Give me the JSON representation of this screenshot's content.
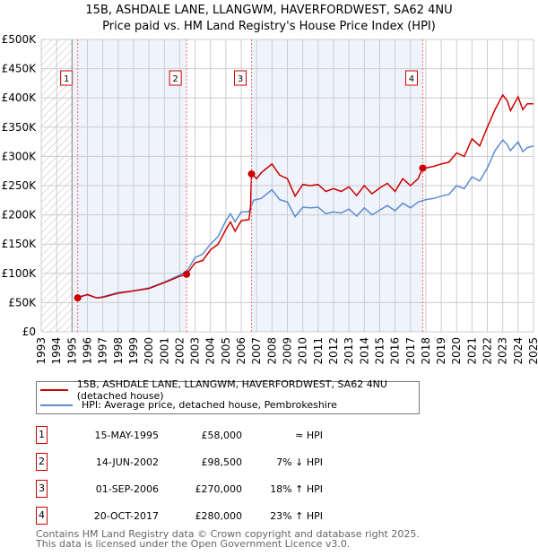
{
  "chart_data": {
    "type": "line",
    "title": "15B, ASHDALE LANE, LLANGWM, HAVERFORDWEST, SA62 4NU",
    "subtitle": "Price paid vs. HM Land Registry's House Price Index (HPI)",
    "ylim": [
      0,
      500000
    ],
    "xlim": [
      1993,
      2025
    ],
    "yticks": [
      0,
      50000,
      100000,
      150000,
      200000,
      250000,
      300000,
      350000,
      400000,
      450000,
      500000
    ],
    "ytick_labels": [
      "£0",
      "£50K",
      "£100K",
      "£150K",
      "£200K",
      "£250K",
      "£300K",
      "£350K",
      "£400K",
      "£450K",
      "£500K"
    ],
    "xtick_labels": [
      "1993",
      "1994",
      "1995",
      "1996",
      "1997",
      "1998",
      "1999",
      "2000",
      "2001",
      "2002",
      "2003",
      "2004",
      "2005",
      "2006",
      "2007",
      "2008",
      "2009",
      "2010",
      "2011",
      "2012",
      "2013",
      "2014",
      "2015",
      "2016",
      "2017",
      "2018",
      "2019",
      "2020",
      "2021",
      "2022",
      "2023",
      "2024",
      "2025"
    ],
    "grid": true,
    "hatched_range": [
      1993,
      1995
    ],
    "shaded_ranges": [
      [
        1995,
        2002.45
      ],
      [
        2006.67,
        2017.8
      ]
    ],
    "series": [
      {
        "name": "15B, ASHDALE LANE, LLANGWM, HAVERFORDWEST, SA62 4NU (detached house)",
        "color": "#cc0000",
        "x": [
          1995.3,
          1995.37,
          1996,
          1996.6,
          1997,
          1998,
          1999,
          2000,
          2001,
          2002,
          2002.45,
          2003,
          2003.5,
          2004,
          2004.5,
          2005,
          2005.3,
          2005.6,
          2006,
          2006.5,
          2006.6,
          2006.67,
          2007,
          2007.3,
          2008,
          2008.5,
          2009,
          2009.5,
          2010,
          2010.5,
          2011,
          2011.5,
          2012,
          2012.5,
          2013,
          2013.5,
          2014,
          2014.5,
          2015,
          2015.5,
          2016,
          2016.5,
          2017,
          2017.5,
          2017.8,
          2018,
          2018.5,
          2019,
          2019.5,
          2020,
          2020.5,
          2021,
          2021.5,
          2022,
          2022.5,
          2023,
          2023.3,
          2023.5,
          2024,
          2024.3,
          2024.6,
          2025
        ],
        "y": [
          62000,
          58000,
          64000,
          58000,
          59000,
          66000,
          70000,
          74000,
          84000,
          95000,
          98500,
          118000,
          122000,
          140000,
          150000,
          175000,
          188000,
          172000,
          190000,
          192000,
          210000,
          270000,
          262000,
          272000,
          287000,
          268000,
          262000,
          232000,
          252000,
          250000,
          252000,
          240000,
          245000,
          240000,
          248000,
          233000,
          250000,
          236000,
          246000,
          254000,
          240000,
          262000,
          250000,
          262000,
          280000,
          280000,
          283000,
          287000,
          290000,
          306000,
          300000,
          330000,
          318000,
          350000,
          380000,
          405000,
          395000,
          378000,
          402000,
          380000,
          390000,
          390000
        ]
      },
      {
        "name": "HPI: Average price, detached house, Pembrokeshire",
        "color": "#5b8bd0",
        "x": [
          1995.3,
          1996,
          1996.6,
          1997,
          1998,
          1999,
          2000,
          2001,
          2002,
          2002.5,
          2003,
          2003.5,
          2004,
          2004.5,
          2005,
          2005.3,
          2005.6,
          2006,
          2006.5,
          2006.8,
          2007.3,
          2008,
          2008.5,
          2009,
          2009.5,
          2010,
          2010.5,
          2011,
          2011.5,
          2012,
          2012.5,
          2013,
          2013.5,
          2014,
          2014.5,
          2015,
          2015.5,
          2016,
          2016.5,
          2017,
          2017.5,
          2018,
          2018.5,
          2019,
          2019.5,
          2020,
          2020.5,
          2021,
          2021.5,
          2022,
          2022.5,
          2023,
          2023.3,
          2023.5,
          2024,
          2024.3,
          2024.6,
          2025
        ],
        "y": [
          60000,
          63000,
          58000,
          60000,
          67000,
          70000,
          75000,
          85000,
          97000,
          105000,
          127000,
          133000,
          150000,
          163000,
          190000,
          202000,
          188000,
          205000,
          205000,
          225000,
          228000,
          243000,
          226000,
          222000,
          197000,
          213000,
          212000,
          213000,
          202000,
          205000,
          203000,
          210000,
          198000,
          212000,
          200000,
          208000,
          216000,
          207000,
          220000,
          212000,
          222000,
          226000,
          228000,
          232000,
          235000,
          250000,
          245000,
          265000,
          258000,
          280000,
          310000,
          328000,
          320000,
          310000,
          325000,
          308000,
          315000,
          318000
        ]
      }
    ],
    "sales": [
      {
        "label": "1",
        "x": 1995.37,
        "y": 58000
      },
      {
        "label": "2",
        "x": 2002.45,
        "y": 98500
      },
      {
        "label": "3",
        "x": 2006.67,
        "y": 270000
      },
      {
        "label": "4",
        "x": 2017.8,
        "y": 280000
      }
    ]
  },
  "legend": {
    "property": "15B, ASHDALE LANE, LLANGWM, HAVERFORDWEST, SA62 4NU (detached house)",
    "hpi": "HPI: Average price, detached house, Pembrokeshire"
  },
  "sales_table": [
    {
      "num": "1",
      "date": "15-MAY-1995",
      "price": "£58,000",
      "vs": "≈ HPI"
    },
    {
      "num": "2",
      "date": "14-JUN-2002",
      "price": "£98,500",
      "vs": "7% ↓ HPI"
    },
    {
      "num": "3",
      "date": "01-SEP-2006",
      "price": "£270,000",
      "vs": "18% ↑ HPI"
    },
    {
      "num": "4",
      "date": "20-OCT-2017",
      "price": "£280,000",
      "vs": "23% ↑ HPI"
    }
  ],
  "footer": {
    "line1": "Contains HM Land Registry data © Crown copyright and database right 2025.",
    "line2": "This data is licensed under the Open Government Licence v3.0."
  }
}
